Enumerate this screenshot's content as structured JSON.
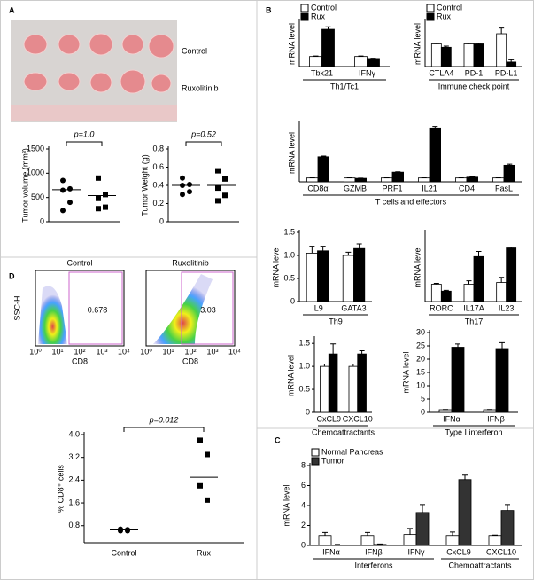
{
  "panels": [
    "A",
    "B",
    "C",
    "D"
  ],
  "photo": {
    "labels": [
      "Control",
      "Ruxolitinib"
    ]
  },
  "flow": {
    "plots": [
      {
        "title": "Control",
        "gate": 0.678
      },
      {
        "title": "Ruxolitinib",
        "gate": 3.03
      }
    ],
    "ylabel": "SSC-H",
    "xlabel": "CD8",
    "xticks": [
      "10⁰",
      "10¹",
      "10²",
      "10³",
      "10⁴"
    ]
  },
  "chart_data": [
    {
      "type": "dotplot",
      "ylabel": "Tumor volume (mm³)",
      "categories": [
        null,
        null
      ],
      "points": [
        [
          850,
          680,
          650,
          400,
          230
        ],
        [
          900,
          560,
          480,
          300,
          270
        ]
      ],
      "lines": [
        660,
        540
      ],
      "markers": [
        "circle",
        "square"
      ],
      "annotation": "p=1.0",
      "ylim": [
        0,
        1500
      ],
      "yticks": [
        0,
        500,
        1000,
        1500
      ]
    },
    {
      "type": "dotplot",
      "ylabel": "Tumor Weight (g)",
      "categories": [
        null,
        null
      ],
      "points": [
        [
          0.48,
          0.41,
          0.4,
          0.33,
          0.3
        ],
        [
          0.56,
          0.47,
          0.37,
          0.29,
          0.23
        ]
      ],
      "lines": [
        0.4,
        0.4
      ],
      "markers": [
        "circle",
        "square"
      ],
      "annotation": "p=0.52",
      "ylim": [
        0,
        0.8
      ],
      "yticks": [
        0,
        0.2,
        0.4,
        0.6,
        0.8
      ]
    },
    {
      "type": "bar",
      "ylabel": "mRNA level",
      "xlabels": [
        "Th1/Tc1"
      ],
      "categories": [
        "Tbx21",
        "IFNγ"
      ],
      "legend": "top-left",
      "ylim": [
        0,
        4.5
      ],
      "series": [
        {
          "name": "Control",
          "color": "#ffffff",
          "values": [
            1,
            1
          ],
          "errors": [
            0.05,
            0.05
          ]
        },
        {
          "name": "Rux",
          "color": "#000000",
          "values": [
            3.7,
            0.8
          ],
          "errors": [
            0.25,
            0.03
          ]
        }
      ]
    },
    {
      "type": "bar",
      "ylabel": "mRNA level",
      "xlabels": [
        "Immune check point"
      ],
      "categories": [
        "CTLA4",
        "PD-1",
        "PD-L1"
      ],
      "legend": "top-left",
      "ylim": [
        0,
        2
      ],
      "series": [
        {
          "name": "Control",
          "color": "#ffffff",
          "values": [
            1,
            1,
            1.45
          ],
          "errors": [
            0.03,
            0.03,
            0.25
          ]
        },
        {
          "name": "Rux",
          "color": "#000000",
          "values": [
            0.85,
            1,
            0.2
          ],
          "errors": [
            0.05,
            0.03,
            0.1
          ]
        }
      ]
    },
    {
      "type": "bar",
      "ylabel": "mRNA level",
      "xlabels": [
        "T cells and effectors"
      ],
      "categories": [
        "CD8α",
        "GZMB",
        "PRF1",
        "IL21",
        "CD4",
        "FasL"
      ],
      "ylim": [
        0,
        15
      ],
      "series": [
        {
          "color": "#ffffff",
          "values": [
            1,
            1,
            1,
            1,
            1,
            1
          ],
          "errors": [
            0.05,
            0.05,
            0.05,
            0.05,
            0.05,
            0.05
          ]
        },
        {
          "color": "#000000",
          "values": [
            6.5,
            0.9,
            2.5,
            14,
            1.2,
            4.3
          ],
          "errors": [
            0.2,
            0.05,
            0.1,
            0.4,
            0.1,
            0.3
          ]
        }
      ]
    },
    {
      "type": "bar",
      "ylabel": "mRNA level",
      "xlabels": [
        "Th9"
      ],
      "categories": [
        "IL9",
        "GATA3"
      ],
      "ylim": [
        0,
        1.5
      ],
      "yticks": [
        0,
        0.5,
        {
          "value": 1,
          "label": "1.0"
        },
        1.5
      ],
      "series": [
        {
          "color": "#ffffff",
          "values": [
            1.05,
            1
          ],
          "errors": [
            0.15,
            0.07
          ]
        },
        {
          "color": "#000000",
          "values": [
            1.1,
            1.15
          ],
          "errors": [
            0.1,
            0.1
          ]
        }
      ]
    },
    {
      "type": "bar",
      "ylabel": "mRNA level",
      "xlabels": [
        "Th17"
      ],
      "categories": [
        "RORC",
        "IL17A",
        "IL23"
      ],
      "ylim": [
        0,
        4
      ],
      "series": [
        {
          "color": "#ffffff",
          "values": [
            1,
            1,
            1.1
          ],
          "errors": [
            0.05,
            0.2,
            0.3
          ]
        },
        {
          "color": "#000000",
          "values": [
            0.6,
            2.6,
            3.1
          ],
          "errors": [
            0.05,
            0.3,
            0.05
          ]
        }
      ]
    },
    {
      "type": "bar",
      "ylabel": "mRNA level",
      "xlabels": [
        "Chemoattractants"
      ],
      "categories": [
        "CxCL9",
        "CXCL10"
      ],
      "ylim": [
        0,
        1.6
      ],
      "yticks": [
        0,
        0.5,
        {
          "value": 1,
          "label": "1.0"
        },
        1.5
      ],
      "series": [
        {
          "color": "#ffffff",
          "values": [
            1,
            1
          ],
          "errors": [
            0.05,
            0.05
          ]
        },
        {
          "color": "#000000",
          "values": [
            1.27,
            1.27
          ],
          "errors": [
            0.22,
            0.07
          ]
        }
      ]
    },
    {
      "type": "bar",
      "ylabel": "mRNA level",
      "xlabels": [
        "Type I interferon"
      ],
      "categories": [
        "IFNα",
        "IFNβ"
      ],
      "ylim": [
        0,
        30
      ],
      "yticks": [
        0,
        5,
        10,
        15,
        20,
        25,
        30
      ],
      "series": [
        {
          "color": "#ffffff",
          "values": [
            1,
            1
          ],
          "errors": [
            0.1,
            0.1
          ]
        },
        {
          "color": "#000000",
          "values": [
            24.5,
            24
          ],
          "errors": [
            1.2,
            2.2
          ]
        }
      ]
    },
    {
      "type": "bar",
      "ylabel": "mRNA level",
      "xlabels": [
        "Interferons",
        "Chemoattractants"
      ],
      "categories": [
        "IFNα",
        "IFNβ",
        "IFNγ",
        "CxCL9",
        "CXCL10"
      ],
      "legend": "top-left",
      "ylim": [
        0,
        8
      ],
      "yticks": [
        0,
        2,
        4,
        6,
        8
      ],
      "series": [
        {
          "name": "Normal Pancreas",
          "color": "#ffffff",
          "values": [
            1,
            1,
            1.1,
            1,
            1
          ],
          "errors": [
            0.3,
            0.3,
            0.6,
            0.35,
            0.05
          ]
        },
        {
          "name": "Tumor",
          "color": "#333333",
          "values": [
            0.05,
            0.1,
            3.3,
            6.6,
            3.5
          ],
          "errors": [
            0.05,
            0.05,
            0.8,
            0.45,
            0.6
          ]
        }
      ]
    },
    {
      "type": "dotplot",
      "ylabel": "% CD8⁺ cells",
      "categories": [
        "Control",
        "Rux"
      ],
      "points": [
        [
          0.68,
          0.62,
          0.62,
          0.66
        ],
        [
          3.8,
          3.3,
          2.2,
          1.7
        ]
      ],
      "lines": [
        0.65,
        2.5
      ],
      "markers": [
        "circle",
        "square"
      ],
      "annotation": "p=0.012",
      "ylim": [
        0.2,
        4.0
      ],
      "yticks": [
        0.8,
        1.6,
        2.4,
        3.2,
        {
          "value": 4,
          "label": "4.0"
        }
      ]
    }
  ]
}
